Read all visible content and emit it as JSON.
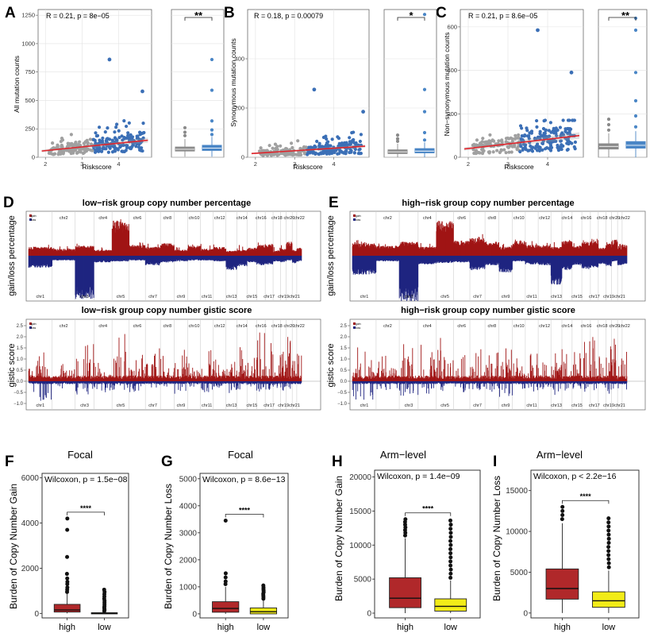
{
  "figure": {
    "panel_letters": [
      "A",
      "B",
      "C",
      "D",
      "E",
      "F",
      "G",
      "H",
      "I"
    ]
  },
  "colors": {
    "scatter_low": "#a0a0a0",
    "scatter_high": "#3b6fb6",
    "fit_line": "#e0242b",
    "box_low": "#8a8a8a",
    "box_high": "#4a86c6",
    "gain": "#a01515",
    "loss": "#1f2580",
    "box_high_burden": "#b0282a",
    "box_low_burden": "#f2ec18"
  },
  "chart_data": [
    {
      "panel": "A",
      "type": "scatter",
      "stat_label": "R = 0.21, p = 8e−05",
      "xlabel": "Riskscore",
      "ylabel": "All mutation counts",
      "xlim": [
        1.8,
        4.9
      ],
      "ylim": [
        0,
        1300
      ],
      "xticks": [
        "2",
        "3",
        "4"
      ],
      "yticks": [
        "0",
        "250",
        "500",
        "750",
        "1000",
        "1250"
      ],
      "fit": {
        "x": [
          1.9,
          4.8
        ],
        "y": [
          55,
          150
        ]
      },
      "outliers_high": [
        [
          3.75,
          860
        ],
        [
          4.65,
          580
        ],
        [
          4.6,
          130
        ]
      ],
      "box_significance": "**",
      "boxes": [
        {
          "name": "low",
          "q1": 55,
          "median": 70,
          "q3": 90,
          "whisker_low": 5,
          "whisker_high": 160,
          "outliers": [
            190,
            220,
            260
          ]
        },
        {
          "name": "high",
          "q1": 60,
          "median": 80,
          "q3": 105,
          "whisker_low": 5,
          "whisker_high": 180,
          "outliers": [
            200,
            240,
            320,
            590,
            860
          ]
        }
      ]
    },
    {
      "panel": "B",
      "type": "scatter",
      "stat_label": "R = 0.18, p = 0.00079",
      "xlabel": "Riskscore",
      "ylabel": "Synonymous mutation counts",
      "xlim": [
        1.8,
        4.9
      ],
      "ylim": [
        0,
        600
      ],
      "xticks": [
        "2",
        "3",
        "4"
      ],
      "yticks": [
        "0",
        "200",
        "400"
      ],
      "fit": {
        "x": [
          1.9,
          4.8
        ],
        "y": [
          15,
          45
        ]
      },
      "outliers_high": [
        [
          3.5,
          275
        ],
        [
          4.75,
          185
        ]
      ],
      "box_significance": "*",
      "boxes": [
        {
          "name": "low",
          "q1": 15,
          "median": 22,
          "q3": 30,
          "whisker_low": 0,
          "whisker_high": 55,
          "outliers": [
            65,
            75,
            90
          ]
        },
        {
          "name": "high",
          "q1": 18,
          "median": 25,
          "q3": 35,
          "whisker_low": 0,
          "whisker_high": 60,
          "outliers": [
            70,
            100,
            185,
            275,
            580
          ]
        }
      ]
    },
    {
      "panel": "C",
      "type": "scatter",
      "stat_label": "R = 0.21, p = 8.6e−05",
      "xlabel": "Riskscore",
      "ylabel": "Non−synonymous mutation counts",
      "xlim": [
        1.8,
        4.9
      ],
      "ylim": [
        0,
        680
      ],
      "xticks": [
        "2",
        "3",
        "4"
      ],
      "yticks": [
        "0",
        "200",
        "400",
        "600"
      ],
      "fit": {
        "x": [
          1.9,
          4.8
        ],
        "y": [
          38,
          100
        ]
      },
      "outliers_high": [
        [
          3.75,
          585
        ],
        [
          4.6,
          390
        ],
        [
          4.55,
          110
        ]
      ],
      "box_significance": "**",
      "boxes": [
        {
          "name": "low",
          "q1": 38,
          "median": 50,
          "q3": 62,
          "whisker_low": 0,
          "whisker_high": 110,
          "outliers": [
            125,
            150,
            175
          ]
        },
        {
          "name": "high",
          "q1": 42,
          "median": 55,
          "q3": 72,
          "whisker_low": 0,
          "whisker_high": 120,
          "outliers": [
            140,
            190,
            260,
            390,
            585,
            640
          ]
        }
      ]
    },
    {
      "panel": "D",
      "type": "cnv_profile",
      "title_percentage": "low−risk group copy number percentage",
      "title_gistic": "low−risk group copy number gistic score",
      "ylabel_percentage": "gain/loss percentage",
      "ylabel_gistic": "gistic score",
      "legend": [
        "gain",
        "loss"
      ],
      "yticks_gistic": [
        "2.5",
        "2.0",
        "1.5",
        "1.0",
        "0.5",
        "0.0",
        "−0.5",
        "−1.0"
      ],
      "chromosomes_top": [
        "chr2",
        "chr4",
        "chr6",
        "chr8",
        "chr10",
        "chr12",
        "chr14",
        "chr16",
        "chr18",
        "chr20",
        "chr22"
      ],
      "chromosomes_bottom": [
        "chr1",
        "chr3",
        "chr5",
        "chr7",
        "chr9",
        "chr11",
        "chr13",
        "chr15",
        "chr17",
        "chr19",
        "chr21"
      ],
      "gain_pct_by_chr": [
        18,
        14,
        20,
        12,
        70,
        22,
        18,
        25,
        12,
        20,
        14,
        18,
        10,
        12,
        16,
        22,
        24,
        10,
        14,
        28,
        12,
        16
      ],
      "loss_pct_by_chr": [
        25,
        10,
        90,
        14,
        12,
        10,
        20,
        14,
        12,
        10,
        10,
        12,
        30,
        22,
        14,
        20,
        18,
        12,
        14,
        10,
        16,
        12
      ],
      "gistic_gain_peak_by_chr": [
        1.4,
        1.0,
        2.0,
        1.1,
        2.2,
        1.2,
        1.6,
        1.3,
        1.5,
        0.9,
        1.4,
        1.0,
        1.0,
        1.6,
        1.1,
        2.2,
        2.0,
        1.2,
        1.4,
        2.3,
        1.0,
        1.5
      ],
      "gistic_loss_peak_by_chr": [
        0.9,
        0.4,
        0.6,
        0.5,
        0.4,
        0.5,
        0.3,
        0.4,
        0.6,
        0.3,
        0.5,
        0.3,
        0.6,
        0.4,
        0.3,
        0.5,
        0.4,
        0.3,
        0.5,
        0.4,
        0.3,
        0.3
      ]
    },
    {
      "panel": "E",
      "type": "cnv_profile",
      "title_percentage": "high−risk group copy number percentage",
      "title_gistic": "high−risk group copy number gistic score",
      "ylabel_percentage": "gain/loss percentage",
      "ylabel_gistic": "gistic score",
      "legend": [
        "gain",
        "loss"
      ],
      "yticks_gistic": [
        "2.5",
        "2.0",
        "1.5",
        "1.0",
        "0.5",
        "0.0",
        "−0.5",
        "−1.0"
      ],
      "chromosomes_top": [
        "chr2",
        "chr4",
        "chr6",
        "chr8",
        "chr10",
        "chr12",
        "chr14",
        "chr16",
        "chr18",
        "chr20",
        "chr22"
      ],
      "chromosomes_bottom": [
        "chr1",
        "chr3",
        "chr5",
        "chr7",
        "chr9",
        "chr11",
        "chr13",
        "chr15",
        "chr17",
        "chr19",
        "chr21"
      ],
      "gain_pct_by_chr": [
        25,
        20,
        28,
        18,
        70,
        30,
        35,
        28,
        18,
        30,
        22,
        22,
        18,
        30,
        20,
        28,
        30,
        16,
        24,
        32,
        18,
        22
      ],
      "loss_pct_by_chr": [
        40,
        12,
        95,
        18,
        15,
        14,
        30,
        20,
        35,
        12,
        18,
        20,
        60,
        30,
        20,
        28,
        25,
        18,
        22,
        12,
        20,
        18
      ],
      "gistic_gain_peak_by_chr": [
        1.6,
        1.2,
        2.0,
        1.8,
        2.2,
        1.4,
        1.6,
        1.5,
        1.6,
        1.2,
        1.5,
        1.1,
        1.3,
        1.8,
        1.4,
        2.1,
        2.1,
        1.4,
        1.7,
        2.1,
        1.2,
        1.6
      ],
      "gistic_loss_peak_by_chr": [
        0.9,
        0.4,
        0.7,
        0.6,
        0.5,
        0.6,
        0.4,
        0.5,
        0.7,
        0.4,
        0.6,
        0.4,
        0.7,
        0.5,
        0.4,
        0.6,
        0.5,
        0.4,
        0.6,
        0.5,
        0.4,
        0.4
      ]
    },
    {
      "panel": "F",
      "type": "boxplot",
      "title": "Focal",
      "stat_label": "Wilcoxon, p = 1.5e−08",
      "ylabel": "Burden of Copy Number Gain",
      "ylim": [
        -200,
        6200
      ],
      "yticks": [
        "0",
        "2000",
        "4000",
        "6000"
      ],
      "categories": [
        "high",
        "low"
      ],
      "significance": "****",
      "boxes": [
        {
          "name": "high",
          "q1": 60,
          "median": 150,
          "q3": 400,
          "whisker_low": 0,
          "whisker_high": 880,
          "outliers": [
            950,
            1050,
            1150,
            1300,
            1400,
            1550,
            1750,
            2500,
            3700,
            4200
          ]
        },
        {
          "name": "low",
          "q1": 0,
          "median": 10,
          "q3": 30,
          "whisker_low": 0,
          "whisker_high": 75,
          "outliers": [
            100,
            150,
            200,
            260,
            320,
            400,
            480,
            560,
            650,
            750,
            850,
            950,
            1050
          ]
        }
      ]
    },
    {
      "panel": "G",
      "type": "boxplot",
      "title": "Focal",
      "stat_label": "Wilcoxon, p = 8.6e−13",
      "ylabel": "Burden of Copy Number Loss",
      "ylim": [
        -150,
        5200
      ],
      "yticks": [
        "0",
        "1000",
        "2000",
        "3000",
        "4000",
        "5000"
      ],
      "categories": [
        "high",
        "low"
      ],
      "significance": "****",
      "boxes": [
        {
          "name": "high",
          "q1": 60,
          "median": 200,
          "q3": 450,
          "whisker_low": 0,
          "whisker_high": 1000,
          "outliers": [
            1100,
            1200,
            1350,
            1500,
            3450
          ]
        },
        {
          "name": "low",
          "q1": 0,
          "median": 80,
          "q3": 220,
          "whisker_low": 0,
          "whisker_high": 520,
          "outliers": [
            560,
            620,
            680,
            740,
            800,
            860,
            920,
            980,
            1050
          ]
        }
      ]
    },
    {
      "panel": "H",
      "type": "boxplot",
      "title": "Arm−level",
      "stat_label": "Wilcoxon, p = 1.4e−09",
      "ylabel": "Burden of Copy Number Gain",
      "ylim": [
        -700,
        21000
      ],
      "yticks": [
        "0",
        "5000",
        "10000",
        "15000",
        "20000"
      ],
      "categories": [
        "high",
        "low"
      ],
      "significance": "****",
      "boxes": [
        {
          "name": "high",
          "q1": 800,
          "median": 2200,
          "q3": 5200,
          "whisker_low": 0,
          "whisker_high": 11000,
          "outliers": [
            11400,
            11800,
            12200,
            12600,
            13000,
            13400,
            13800
          ]
        },
        {
          "name": "low",
          "q1": 300,
          "median": 1000,
          "q3": 2100,
          "whisker_low": 0,
          "whisker_high": 4800,
          "outliers": [
            5200,
            5800,
            6400,
            7000,
            7600,
            8200,
            8800,
            9400,
            10000,
            10600,
            11200,
            11800,
            12400,
            13000,
            13600
          ]
        }
      ]
    },
    {
      "panel": "I",
      "type": "boxplot",
      "title": "Arm−level",
      "stat_label": "Wilcoxon, p < 2.2e−16",
      "ylabel": "Burden of Copy Number Loss",
      "ylim": [
        -600,
        17500
      ],
      "yticks": [
        "0",
        "5000",
        "10000",
        "15000"
      ],
      "categories": [
        "high",
        "low"
      ],
      "significance": "****",
      "boxes": [
        {
          "name": "high",
          "q1": 1700,
          "median": 3000,
          "q3": 5400,
          "whisker_low": 0,
          "whisker_high": 11000,
          "outliers": [
            11500,
            12000,
            12500,
            13000
          ]
        },
        {
          "name": "low",
          "q1": 700,
          "median": 1500,
          "q3": 2600,
          "whisker_low": 0,
          "whisker_high": 5200,
          "outliers": [
            5600,
            6100,
            6600,
            7100,
            7600,
            8100,
            8600,
            9100,
            9600,
            10100,
            10600,
            11100,
            11600
          ]
        }
      ]
    }
  ]
}
